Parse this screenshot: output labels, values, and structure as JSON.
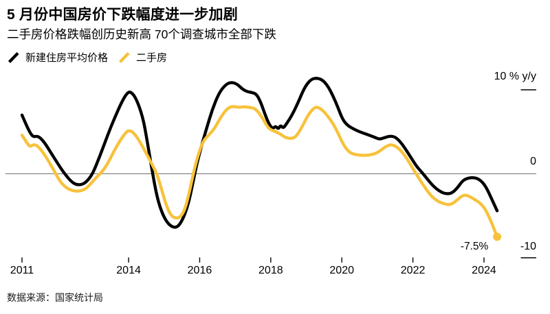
{
  "header": {
    "title": "5 月份中国房价下跌幅度进一步加剧",
    "subtitle": "二手房价格跌幅创历史新高 70个调查城市全部下跌"
  },
  "legend": {
    "items": [
      {
        "label": "新建住房平均价格",
        "color": "#000000"
      },
      {
        "label": "二手房",
        "color": "#F7C23B"
      }
    ]
  },
  "chart_data": {
    "type": "line",
    "title": "5 月份中国房价下跌幅度进一步加剧",
    "xlabel": "",
    "ylabel": "% y/y",
    "ylim": [
      -10,
      10
    ],
    "grid": "zero-line-only",
    "legend_position": "top-left",
    "y_axis": {
      "top_label": "10 % y/y",
      "zero_label": "0",
      "bottom_label": "-10",
      "max": 10,
      "min": -10
    },
    "x_axis": {
      "ticks": [
        2011,
        2014,
        2016,
        2018,
        2020,
        2022,
        2024
      ],
      "start": 2011.0,
      "end": 2024.4
    },
    "annotation": {
      "text": "-7.5%",
      "x": 2024.37,
      "y": -7.5
    },
    "series": [
      {
        "name": "新建住房平均价格",
        "color": "#000000",
        "width": 4.4,
        "end_dot": false,
        "points": [
          [
            2011.0,
            7.0
          ],
          [
            2011.12,
            5.8
          ],
          [
            2011.25,
            4.7
          ],
          [
            2011.33,
            4.4
          ],
          [
            2011.45,
            4.5
          ],
          [
            2011.58,
            4.0
          ],
          [
            2011.7,
            3.3
          ],
          [
            2011.83,
            2.4
          ],
          [
            2011.95,
            1.6
          ],
          [
            2012.1,
            0.6
          ],
          [
            2012.22,
            -0.1
          ],
          [
            2012.38,
            -0.9
          ],
          [
            2012.52,
            -1.3
          ],
          [
            2012.7,
            -1.3
          ],
          [
            2012.85,
            -0.8
          ],
          [
            2013.0,
            0.1
          ],
          [
            2013.2,
            2.2
          ],
          [
            2013.4,
            4.5
          ],
          [
            2013.6,
            6.6
          ],
          [
            2013.8,
            8.5
          ],
          [
            2013.95,
            9.6
          ],
          [
            2014.05,
            9.8
          ],
          [
            2014.2,
            9.1
          ],
          [
            2014.4,
            6.8
          ],
          [
            2014.52,
            4.0
          ],
          [
            2014.66,
            0.4
          ],
          [
            2014.8,
            -2.8
          ],
          [
            2014.95,
            -4.8
          ],
          [
            2015.1,
            -5.9
          ],
          [
            2015.25,
            -6.4
          ],
          [
            2015.4,
            -6.3
          ],
          [
            2015.55,
            -5.2
          ],
          [
            2015.68,
            -3.6
          ],
          [
            2015.8,
            -1.3
          ],
          [
            2015.92,
            1.2
          ],
          [
            2016.05,
            3.3
          ],
          [
            2016.2,
            5.5
          ],
          [
            2016.35,
            7.6
          ],
          [
            2016.55,
            9.7
          ],
          [
            2016.75,
            10.7
          ],
          [
            2016.9,
            10.9
          ],
          [
            2017.05,
            10.7
          ],
          [
            2017.2,
            10.1
          ],
          [
            2017.32,
            9.8
          ],
          [
            2017.45,
            9.7
          ],
          [
            2017.6,
            9.5
          ],
          [
            2017.72,
            8.5
          ],
          [
            2017.82,
            7.3
          ],
          [
            2017.92,
            6.2
          ],
          [
            2018.0,
            5.6
          ],
          [
            2018.07,
            5.4
          ],
          [
            2018.14,
            5.7
          ],
          [
            2018.21,
            5.3
          ],
          [
            2018.28,
            5.8
          ],
          [
            2018.35,
            5.4
          ],
          [
            2018.45,
            6.0
          ],
          [
            2018.6,
            7.0
          ],
          [
            2018.75,
            8.3
          ],
          [
            2018.88,
            9.6
          ],
          [
            2019.0,
            10.6
          ],
          [
            2019.15,
            11.3
          ],
          [
            2019.3,
            11.4
          ],
          [
            2019.45,
            11.2
          ],
          [
            2019.6,
            10.5
          ],
          [
            2019.75,
            9.3
          ],
          [
            2019.9,
            7.8
          ],
          [
            2020.02,
            6.5
          ],
          [
            2020.15,
            5.8
          ],
          [
            2020.3,
            5.4
          ],
          [
            2020.5,
            5.0
          ],
          [
            2020.7,
            4.7
          ],
          [
            2020.9,
            4.4
          ],
          [
            2021.05,
            4.1
          ],
          [
            2021.2,
            4.3
          ],
          [
            2021.35,
            4.5
          ],
          [
            2021.5,
            4.4
          ],
          [
            2021.65,
            3.8
          ],
          [
            2021.8,
            2.9
          ],
          [
            2021.95,
            1.9
          ],
          [
            2022.1,
            0.9
          ],
          [
            2022.25,
            0.2
          ],
          [
            2022.4,
            -0.6
          ],
          [
            2022.6,
            -1.6
          ],
          [
            2022.8,
            -2.2
          ],
          [
            2022.95,
            -2.4
          ],
          [
            2023.1,
            -2.3
          ],
          [
            2023.25,
            -1.7
          ],
          [
            2023.4,
            -0.8
          ],
          [
            2023.55,
            -0.5
          ],
          [
            2023.7,
            -0.45
          ],
          [
            2023.85,
            -0.6
          ],
          [
            2024.0,
            -1.2
          ],
          [
            2024.12,
            -2.1
          ],
          [
            2024.25,
            -3.3
          ],
          [
            2024.37,
            -4.4
          ]
        ]
      },
      {
        "name": "二手房",
        "color": "#F7C23B",
        "width": 4.4,
        "end_dot": true,
        "points": [
          [
            2011.0,
            4.6
          ],
          [
            2011.12,
            3.8
          ],
          [
            2011.22,
            3.2
          ],
          [
            2011.32,
            3.5
          ],
          [
            2011.45,
            3.3
          ],
          [
            2011.6,
            2.5
          ],
          [
            2011.75,
            1.5
          ],
          [
            2011.9,
            0.4
          ],
          [
            2012.05,
            -0.8
          ],
          [
            2012.22,
            -1.6
          ],
          [
            2012.4,
            -2.0
          ],
          [
            2012.6,
            -2.1
          ],
          [
            2012.8,
            -1.8
          ],
          [
            2012.95,
            -1.1
          ],
          [
            2013.1,
            -0.4
          ],
          [
            2013.27,
            0.3
          ],
          [
            2013.45,
            1.5
          ],
          [
            2013.6,
            2.8
          ],
          [
            2013.75,
            3.9
          ],
          [
            2013.9,
            4.8
          ],
          [
            2014.0,
            5.2
          ],
          [
            2014.15,
            4.9
          ],
          [
            2014.35,
            3.6
          ],
          [
            2014.5,
            2.4
          ],
          [
            2014.65,
            1.2
          ],
          [
            2014.8,
            0.0
          ],
          [
            2014.95,
            -2.2
          ],
          [
            2015.08,
            -4.0
          ],
          [
            2015.2,
            -5.0
          ],
          [
            2015.32,
            -5.3
          ],
          [
            2015.45,
            -5.2
          ],
          [
            2015.58,
            -4.3
          ],
          [
            2015.7,
            -2.4
          ],
          [
            2015.82,
            0.0
          ],
          [
            2015.95,
            2.2
          ],
          [
            2016.1,
            3.9
          ],
          [
            2016.25,
            4.6
          ],
          [
            2016.42,
            5.4
          ],
          [
            2016.56,
            6.5
          ],
          [
            2016.7,
            7.4
          ],
          [
            2016.85,
            8.0
          ],
          [
            2017.0,
            8.0
          ],
          [
            2017.12,
            7.9
          ],
          [
            2017.25,
            8.0
          ],
          [
            2017.4,
            7.9
          ],
          [
            2017.55,
            7.8
          ],
          [
            2017.68,
            7.2
          ],
          [
            2017.8,
            6.4
          ],
          [
            2017.92,
            5.5
          ],
          [
            2018.02,
            5.2
          ],
          [
            2018.15,
            5.0
          ],
          [
            2018.28,
            4.7
          ],
          [
            2018.42,
            4.3
          ],
          [
            2018.55,
            4.2
          ],
          [
            2018.68,
            4.3
          ],
          [
            2018.8,
            5.0
          ],
          [
            2018.92,
            5.9
          ],
          [
            2019.05,
            7.0
          ],
          [
            2019.18,
            7.7
          ],
          [
            2019.3,
            8.0
          ],
          [
            2019.45,
            7.6
          ],
          [
            2019.6,
            6.9
          ],
          [
            2019.75,
            6.0
          ],
          [
            2019.9,
            4.8
          ],
          [
            2020.05,
            3.4
          ],
          [
            2020.2,
            2.6
          ],
          [
            2020.35,
            2.3
          ],
          [
            2020.55,
            2.2
          ],
          [
            2020.75,
            2.2
          ],
          [
            2020.95,
            2.4
          ],
          [
            2021.1,
            2.8
          ],
          [
            2021.25,
            3.3
          ],
          [
            2021.4,
            3.5
          ],
          [
            2021.55,
            3.2
          ],
          [
            2021.7,
            2.6
          ],
          [
            2021.85,
            1.7
          ],
          [
            2022.0,
            0.6
          ],
          [
            2022.15,
            -0.4
          ],
          [
            2022.3,
            -1.4
          ],
          [
            2022.5,
            -2.6
          ],
          [
            2022.7,
            -3.3
          ],
          [
            2022.9,
            -3.6
          ],
          [
            2023.05,
            -3.7
          ],
          [
            2023.2,
            -3.3
          ],
          [
            2023.35,
            -2.7
          ],
          [
            2023.47,
            -2.5
          ],
          [
            2023.6,
            -2.7
          ],
          [
            2023.75,
            -3.1
          ],
          [
            2023.9,
            -3.5
          ],
          [
            2024.05,
            -4.3
          ],
          [
            2024.15,
            -5.2
          ],
          [
            2024.25,
            -6.2
          ],
          [
            2024.37,
            -7.5
          ]
        ]
      }
    ]
  },
  "source": {
    "text": "数据来源：国家统计局"
  }
}
